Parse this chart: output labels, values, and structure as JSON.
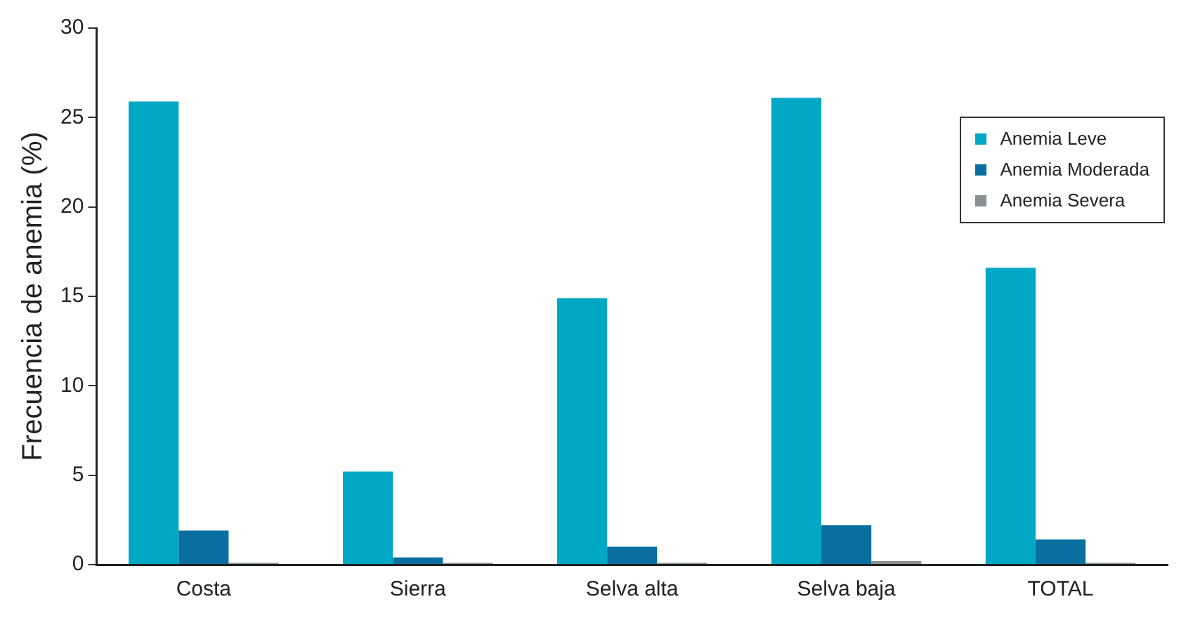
{
  "chart_data": {
    "type": "bar",
    "ylabel": "Frecuencia de anemia (%)",
    "categories": [
      "Costa",
      "Sierra",
      "Selva alta",
      "Selva baja",
      "TOTAL"
    ],
    "series": [
      {
        "name": "Anemia Leve",
        "color": "#00a8c6",
        "values": [
          25.9,
          5.2,
          14.9,
          26.1,
          16.6
        ]
      },
      {
        "name": "Anemia Moderada",
        "color": "#0a6fa0",
        "values": [
          1.9,
          0.4,
          1.0,
          2.2,
          1.4
        ]
      },
      {
        "name": "Anemia Severa",
        "color": "#8a8f94",
        "values": [
          0.1,
          0.1,
          0.1,
          0.2,
          0.1
        ]
      }
    ],
    "ylim": [
      0,
      30
    ],
    "yticks": [
      0,
      5,
      10,
      15,
      20,
      25,
      30
    ],
    "grid": false,
    "legend": "top right"
  }
}
